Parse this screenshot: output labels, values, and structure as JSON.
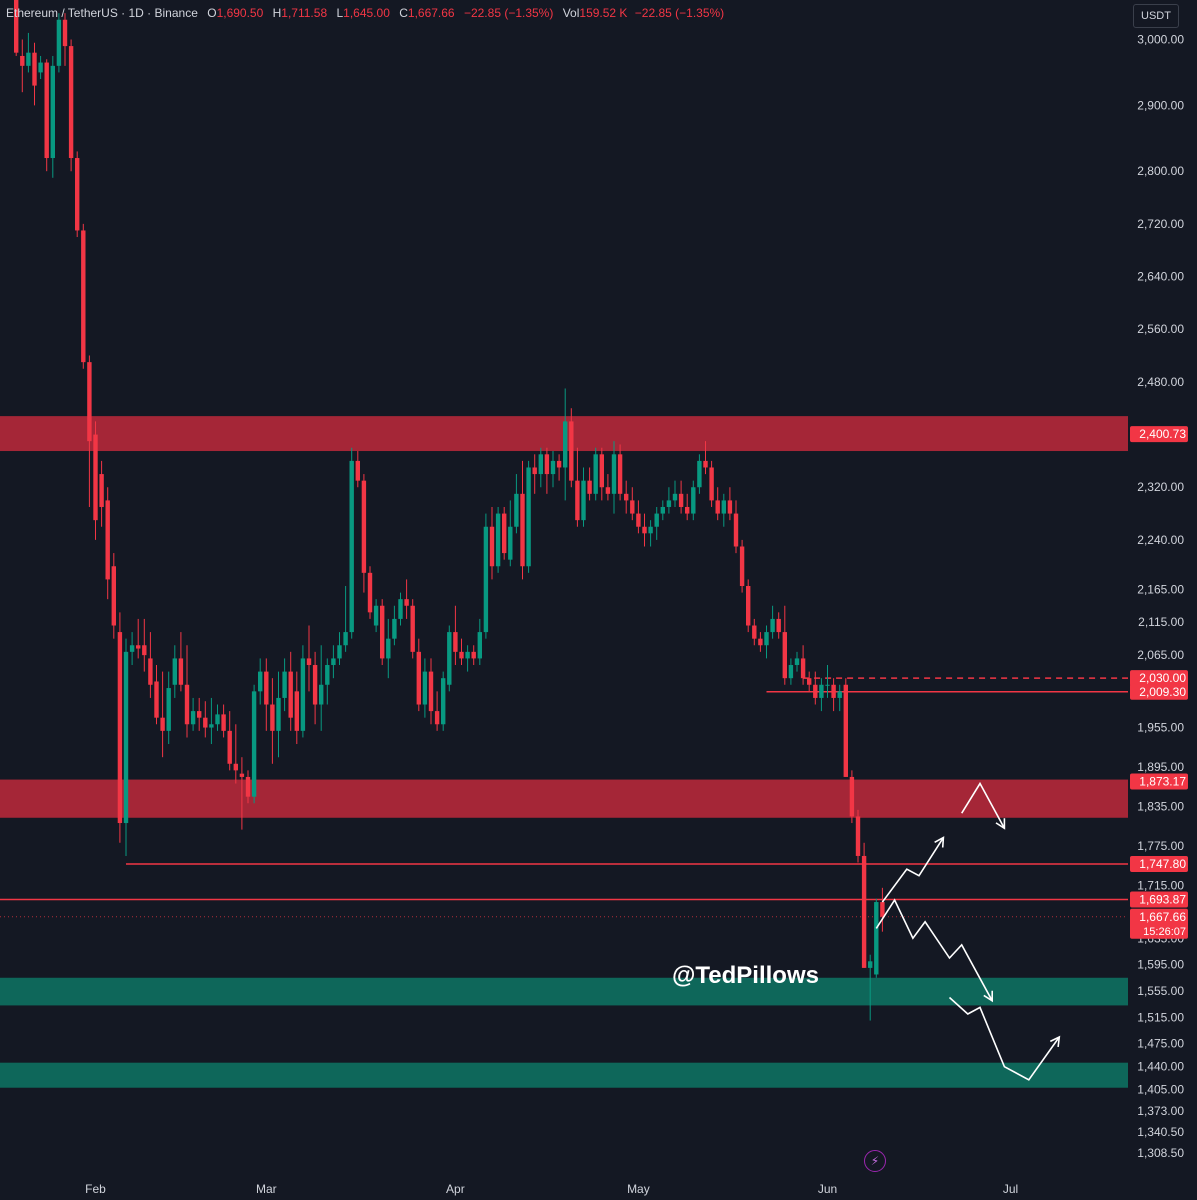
{
  "header": {
    "symbol": "Ethereum / TetherUS · 1D · Binance",
    "o_label": "O",
    "o_value": "1,690.50",
    "h_label": "H",
    "h_value": "1,711.58",
    "l_label": "L",
    "l_value": "1,645.00",
    "c_label": "C",
    "c_value": "1,667.66",
    "change": "−22.85 (−1.35%)",
    "vol_label": "Vol",
    "vol_value": "159.52 K",
    "vol_change": "−22.85 (−1.35%)",
    "currency": "USDT"
  },
  "watermark": "@TedPillows",
  "alert_icon": "lightning-bolt-icon",
  "colors": {
    "background": "#141823",
    "up": "#089981",
    "down": "#f23645",
    "resistance_zone": "#b2283a",
    "support_zone": "#0e6f5f",
    "grid_text": "#d1d4dc"
  },
  "chart_data": {
    "type": "candlestick",
    "title": "",
    "xlabel": "",
    "ylabel": "",
    "ylim": [
      1280,
      3060
    ],
    "y_ticks": [
      {
        "value": 3000,
        "label": "3,000.00"
      },
      {
        "value": 2900,
        "label": "2,900.00"
      },
      {
        "value": 2800,
        "label": "2,800.00"
      },
      {
        "value": 2720,
        "label": "2,720.00"
      },
      {
        "value": 2640,
        "label": "2,640.00"
      },
      {
        "value": 2560,
        "label": "2,560.00"
      },
      {
        "value": 2480,
        "label": "2,480.00"
      },
      {
        "value": 2320,
        "label": "2,320.00"
      },
      {
        "value": 2240,
        "label": "2,240.00"
      },
      {
        "value": 2165,
        "label": "2,165.00"
      },
      {
        "value": 2115,
        "label": "2,115.00"
      },
      {
        "value": 2065,
        "label": "2,065.00"
      },
      {
        "value": 1955,
        "label": "1,955.00"
      },
      {
        "value": 1895,
        "label": "1,895.00"
      },
      {
        "value": 1835,
        "label": "1,835.00"
      },
      {
        "value": 1775,
        "label": "1,775.00"
      },
      {
        "value": 1715,
        "label": "1,715.00"
      },
      {
        "value": 1635,
        "label": "1,635.00"
      },
      {
        "value": 1595,
        "label": "1,595.00"
      },
      {
        "value": 1555,
        "label": "1,555.00"
      },
      {
        "value": 1515,
        "label": "1,515.00"
      },
      {
        "value": 1475,
        "label": "1,475.00"
      },
      {
        "value": 1440,
        "label": "1,440.00"
      },
      {
        "value": 1405,
        "label": "1,405.00"
      },
      {
        "value": 1373,
        "label": "1,373.00"
      },
      {
        "value": 1340.5,
        "label": "1,340.50"
      },
      {
        "value": 1308.5,
        "label": "1,308.50"
      }
    ],
    "x_ticks": [
      {
        "bar": 15,
        "label": "Feb"
      },
      {
        "bar": 43,
        "label": "Mar"
      },
      {
        "bar": 74,
        "label": "Apr"
      },
      {
        "bar": 104,
        "label": "May"
      },
      {
        "bar": 135,
        "label": "Jun"
      },
      {
        "bar": 165,
        "label": "Jul"
      }
    ],
    "price_labels": [
      {
        "value": 2400.73,
        "label": "2,400.73",
        "color": "#f23645"
      },
      {
        "value": 2030.0,
        "label": "2,030.00",
        "color": "#f23645"
      },
      {
        "value": 2009.3,
        "label": "2,009.30",
        "color": "#f23645"
      },
      {
        "value": 1873.17,
        "label": "1,873.17",
        "color": "#f23645"
      },
      {
        "value": 1747.8,
        "label": "1,747.80",
        "color": "#f23645"
      },
      {
        "value": 1693.87,
        "label": "1,693.87",
        "color": "#f23645"
      },
      {
        "value": 1667.66,
        "label": "1,667.66",
        "color": "#f23645",
        "sub": "15:26:07"
      }
    ],
    "zones": [
      {
        "kind": "resistance",
        "low": 2375,
        "high": 2428
      },
      {
        "kind": "resistance",
        "low": 1818,
        "high": 1876
      },
      {
        "kind": "support",
        "low": 1533,
        "high": 1575
      },
      {
        "kind": "support",
        "low": 1408,
        "high": 1446
      }
    ],
    "levels": [
      {
        "value": 2009.3,
        "from_bar": 125,
        "style": "solid"
      },
      {
        "value": 2030.0,
        "from_bar": 131,
        "style": "dashed"
      },
      {
        "value": 1747.8,
        "from_bar": 20,
        "style": "solid"
      },
      {
        "value": 1693.87,
        "from_bar": 0,
        "style": "solid"
      },
      {
        "value": 1667.66,
        "from_bar": 0,
        "style": "dotted"
      }
    ],
    "projections": [
      [
        [
          144,
          1690
        ],
        [
          148,
          1740
        ],
        [
          150,
          1730
        ],
        [
          154,
          1788
        ]
      ],
      [
        [
          157,
          1825
        ],
        [
          160,
          1870
        ],
        [
          164,
          1802
        ]
      ],
      [
        [
          143,
          1650
        ],
        [
          146,
          1693
        ],
        [
          149,
          1635
        ],
        [
          151,
          1660
        ],
        [
          155,
          1605
        ],
        [
          157,
          1625
        ],
        [
          162,
          1540
        ]
      ],
      [
        [
          155,
          1545
        ],
        [
          158,
          1520
        ],
        [
          160,
          1530
        ],
        [
          164,
          1440
        ],
        [
          168,
          1420
        ],
        [
          173,
          1485
        ]
      ]
    ],
    "candles": [
      [
        2,
        3060,
        3080,
        2975,
        2980
      ],
      [
        3,
        2975,
        3000,
        2920,
        2960
      ],
      [
        4,
        2960,
        3010,
        2950,
        2980
      ],
      [
        5,
        2980,
        2995,
        2900,
        2930
      ],
      [
        6,
        2950,
        2975,
        2940,
        2965
      ],
      [
        7,
        2965,
        2970,
        2800,
        2820
      ],
      [
        8,
        2820,
        2975,
        2790,
        2960
      ],
      [
        9,
        2960,
        3040,
        2950,
        3030
      ],
      [
        10,
        3030,
        3040,
        2960,
        2990
      ],
      [
        11,
        2990,
        3000,
        2800,
        2820
      ],
      [
        12,
        2820,
        2830,
        2700,
        2710
      ],
      [
        13,
        2710,
        2720,
        2500,
        2510
      ],
      [
        14,
        2510,
        2520,
        2290,
        2390
      ],
      [
        15,
        2400,
        2420,
        2240,
        2270
      ],
      [
        16,
        2340,
        2360,
        2260,
        2290
      ],
      [
        17,
        2300,
        2320,
        2150,
        2180
      ],
      [
        18,
        2200,
        2220,
        2090,
        2110
      ],
      [
        19,
        2100,
        2130,
        1780,
        1810
      ],
      [
        20,
        1810,
        2090,
        1760,
        2070
      ],
      [
        21,
        2070,
        2100,
        2050,
        2080
      ],
      [
        22,
        2080,
        2120,
        2060,
        2075
      ],
      [
        23,
        2080,
        2120,
        2040,
        2065
      ],
      [
        24,
        2060,
        2100,
        2000,
        2020
      ],
      [
        25,
        2025,
        2050,
        1960,
        1970
      ],
      [
        26,
        1970,
        2040,
        1910,
        1950
      ],
      [
        27,
        1950,
        2040,
        1930,
        2015
      ],
      [
        28,
        2020,
        2080,
        2000,
        2060
      ],
      [
        29,
        2060,
        2100,
        2010,
        2020
      ],
      [
        30,
        2020,
        2080,
        1940,
        1960
      ],
      [
        31,
        1960,
        2000,
        1950,
        1980
      ],
      [
        32,
        1980,
        2000,
        1950,
        1970
      ],
      [
        33,
        1970,
        1995,
        1940,
        1955
      ],
      [
        34,
        1955,
        2000,
        1930,
        1960
      ],
      [
        35,
        1960,
        1990,
        1950,
        1975
      ],
      [
        36,
        1975,
        1990,
        1940,
        1950
      ],
      [
        37,
        1950,
        1980,
        1890,
        1900
      ],
      [
        38,
        1900,
        1960,
        1870,
        1890
      ],
      [
        39,
        1885,
        1910,
        1800,
        1880
      ],
      [
        40,
        1880,
        1890,
        1840,
        1850
      ],
      [
        41,
        1850,
        2020,
        1840,
        2010
      ],
      [
        42,
        2010,
        2060,
        1990,
        2040
      ],
      [
        43,
        2040,
        2060,
        1950,
        1990
      ],
      [
        44,
        1990,
        2030,
        1900,
        1950
      ],
      [
        45,
        1950,
        2040,
        1910,
        2000
      ],
      [
        46,
        2000,
        2060,
        1980,
        2040
      ],
      [
        47,
        2040,
        2070,
        1950,
        1970
      ],
      [
        48,
        2010,
        2040,
        1930,
        1950
      ],
      [
        49,
        1950,
        2080,
        1940,
        2060
      ],
      [
        50,
        2060,
        2110,
        2010,
        2050
      ],
      [
        51,
        2050,
        2070,
        1960,
        1990
      ],
      [
        52,
        1990,
        2080,
        1950,
        2020
      ],
      [
        53,
        2020,
        2060,
        1990,
        2050
      ],
      [
        54,
        2050,
        2080,
        2030,
        2060
      ],
      [
        55,
        2060,
        2100,
        2050,
        2080
      ],
      [
        56,
        2080,
        2170,
        2070,
        2100
      ],
      [
        57,
        2100,
        2380,
        2090,
        2360
      ],
      [
        58,
        2360,
        2375,
        2320,
        2330
      ],
      [
        59,
        2330,
        2340,
        2160,
        2190
      ],
      [
        60,
        2190,
        2200,
        2120,
        2130
      ],
      [
        61,
        2110,
        2150,
        2100,
        2140
      ],
      [
        62,
        2140,
        2150,
        2050,
        2060
      ],
      [
        63,
        2060,
        2120,
        2030,
        2090
      ],
      [
        64,
        2090,
        2140,
        2080,
        2120
      ],
      [
        65,
        2120,
        2160,
        2110,
        2150
      ],
      [
        66,
        2150,
        2180,
        2120,
        2140
      ],
      [
        67,
        2140,
        2150,
        2060,
        2070
      ],
      [
        68,
        2070,
        2090,
        1980,
        1990
      ],
      [
        69,
        1990,
        2060,
        1970,
        2040
      ],
      [
        70,
        2040,
        2060,
        1960,
        1980
      ],
      [
        71,
        1980,
        2010,
        1950,
        1960
      ],
      [
        72,
        1960,
        2040,
        1950,
        2030
      ],
      [
        73,
        2020,
        2110,
        2010,
        2100
      ],
      [
        74,
        2100,
        2140,
        2050,
        2070
      ],
      [
        75,
        2070,
        2090,
        2050,
        2060
      ],
      [
        76,
        2060,
        2080,
        2040,
        2070
      ],
      [
        77,
        2070,
        2080,
        2050,
        2060
      ],
      [
        78,
        2060,
        2120,
        2050,
        2100
      ],
      [
        79,
        2100,
        2280,
        2090,
        2260
      ],
      [
        80,
        2260,
        2290,
        2180,
        2200
      ],
      [
        81,
        2200,
        2290,
        2190,
        2280
      ],
      [
        82,
        2280,
        2290,
        2210,
        2220
      ],
      [
        83,
        2210,
        2300,
        2200,
        2260
      ],
      [
        84,
        2260,
        2340,
        2250,
        2310
      ],
      [
        85,
        2310,
        2360,
        2180,
        2200
      ],
      [
        86,
        2200,
        2360,
        2190,
        2350
      ],
      [
        87,
        2350,
        2370,
        2310,
        2340
      ],
      [
        88,
        2340,
        2380,
        2320,
        2370
      ],
      [
        89,
        2370,
        2380,
        2310,
        2340
      ],
      [
        90,
        2340,
        2375,
        2320,
        2360
      ],
      [
        91,
        2360,
        2370,
        2330,
        2350
      ],
      [
        92,
        2350,
        2470,
        2300,
        2420
      ],
      [
        93,
        2420,
        2440,
        2320,
        2330
      ],
      [
        94,
        2330,
        2380,
        2260,
        2270
      ],
      [
        95,
        2270,
        2350,
        2260,
        2330
      ],
      [
        96,
        2330,
        2350,
        2300,
        2310
      ],
      [
        97,
        2310,
        2380,
        2300,
        2370
      ],
      [
        98,
        2370,
        2380,
        2300,
        2320
      ],
      [
        99,
        2320,
        2340,
        2300,
        2310
      ],
      [
        100,
        2310,
        2390,
        2280,
        2370
      ],
      [
        101,
        2370,
        2385,
        2300,
        2310
      ],
      [
        102,
        2310,
        2330,
        2280,
        2300
      ],
      [
        103,
        2300,
        2320,
        2270,
        2280
      ],
      [
        104,
        2280,
        2300,
        2250,
        2260
      ],
      [
        105,
        2260,
        2280,
        2230,
        2250
      ],
      [
        106,
        2250,
        2270,
        2230,
        2260
      ],
      [
        107,
        2260,
        2290,
        2240,
        2280
      ],
      [
        108,
        2280,
        2300,
        2270,
        2290
      ],
      [
        109,
        2290,
        2320,
        2280,
        2300
      ],
      [
        110,
        2300,
        2330,
        2290,
        2310
      ],
      [
        111,
        2310,
        2330,
        2280,
        2290
      ],
      [
        112,
        2290,
        2310,
        2270,
        2280
      ],
      [
        113,
        2280,
        2330,
        2270,
        2320
      ],
      [
        114,
        2320,
        2370,
        2310,
        2360
      ],
      [
        115,
        2360,
        2390,
        2340,
        2350
      ],
      [
        116,
        2350,
        2360,
        2290,
        2300
      ],
      [
        117,
        2300,
        2320,
        2270,
        2280
      ],
      [
        118,
        2280,
        2310,
        2260,
        2300
      ],
      [
        119,
        2300,
        2320,
        2270,
        2280
      ],
      [
        120,
        2280,
        2300,
        2220,
        2230
      ],
      [
        121,
        2230,
        2240,
        2160,
        2170
      ],
      [
        122,
        2170,
        2180,
        2100,
        2110
      ],
      [
        123,
        2110,
        2120,
        2080,
        2090
      ],
      [
        124,
        2090,
        2100,
        2070,
        2080
      ],
      [
        125,
        2080,
        2110,
        2060,
        2100
      ],
      [
        126,
        2100,
        2140,
        2090,
        2120
      ],
      [
        127,
        2120,
        2130,
        2090,
        2100
      ],
      [
        128,
        2100,
        2140,
        2020,
        2030
      ],
      [
        129,
        2030,
        2060,
        2020,
        2050
      ],
      [
        130,
        2050,
        2070,
        2040,
        2060
      ],
      [
        131,
        2060,
        2080,
        2020,
        2030
      ],
      [
        132,
        2030,
        2040,
        2010,
        2020
      ],
      [
        133,
        2020,
        2040,
        1990,
        2000
      ],
      [
        134,
        2000,
        2030,
        1980,
        2020
      ],
      [
        135,
        2020,
        2050,
        2000,
        2020
      ],
      [
        136,
        2020,
        2030,
        1980,
        2000
      ],
      [
        137,
        2000,
        2020,
        1980,
        2010
      ],
      [
        138,
        2020,
        2030,
        1880,
        1880
      ],
      [
        139,
        1880,
        1890,
        1810,
        1820
      ],
      [
        140,
        1820,
        1830,
        1750,
        1760
      ],
      [
        141,
        1760,
        1780,
        1590,
        1590
      ],
      [
        142,
        1590,
        1610,
        1510,
        1600
      ],
      [
        143,
        1580,
        1695,
        1575,
        1690
      ],
      [
        144,
        1690,
        1711.58,
        1645,
        1667.66
      ]
    ]
  }
}
